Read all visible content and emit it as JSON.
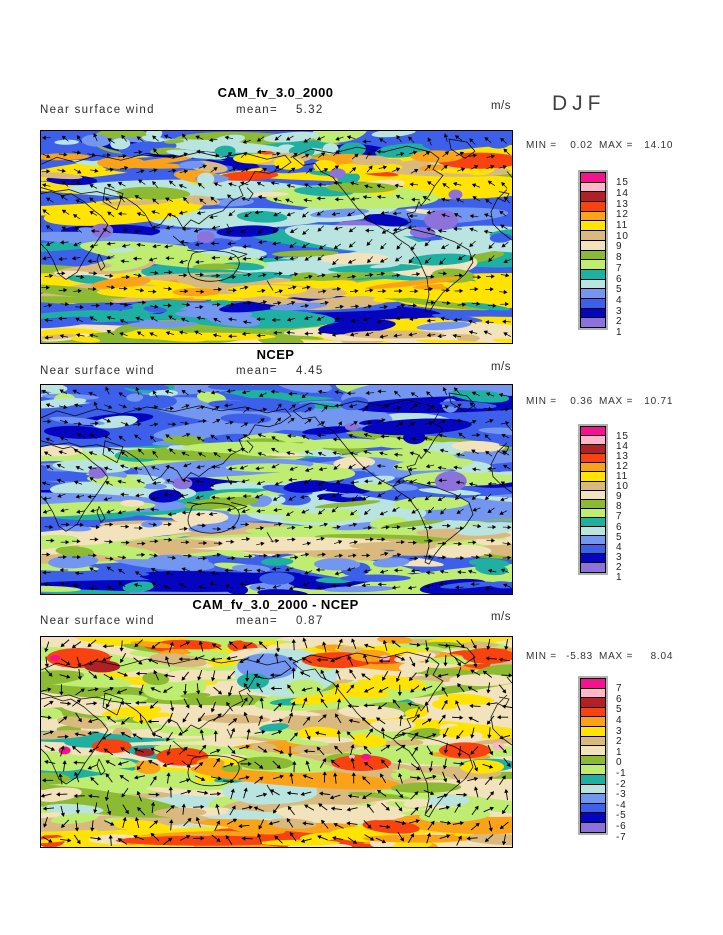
{
  "figure": {
    "season_label": "DJF"
  },
  "palette": {
    "colors": [
      "#F5128E",
      "#FFB6C6",
      "#B02025",
      "#F84310",
      "#FAA319",
      "#FFE303",
      "#D9B97D",
      "#F3E3BC",
      "#8CBB33",
      "#BFED72",
      "#1FB0A2",
      "#B9E4E0",
      "#7397F0",
      "#3C60EA",
      "#0505BF",
      "#8C72DA"
    ],
    "colorbar_border": "#b0b0b0",
    "map_outline": "#000000"
  },
  "chart_data": [
    {
      "type": "heatmap",
      "title": "CAM_fv_3.0_2000",
      "subtitle_left": "Near surface wind",
      "mean_label": "mean=",
      "mean_value": "5.32",
      "units": "m/s",
      "stats": {
        "min_label": "MIN =",
        "min_value": "0.02",
        "max_label": "MAX =",
        "max_value": "14.10"
      },
      "colorbar": {
        "ticks": [
          "15",
          "14",
          "13",
          "12",
          "11",
          "10",
          "9",
          "8",
          "7",
          "6",
          "5",
          "4",
          "3",
          "2",
          "1"
        ]
      }
    },
    {
      "type": "heatmap",
      "title": "NCEP",
      "subtitle_left": "Near surface wind",
      "mean_label": "mean=",
      "mean_value": "4.45",
      "units": "m/s",
      "stats": {
        "min_label": "MIN =",
        "min_value": "0.36",
        "max_label": "MAX =",
        "max_value": "10.71"
      },
      "colorbar": {
        "ticks": [
          "15",
          "14",
          "13",
          "12",
          "11",
          "10",
          "9",
          "8",
          "7",
          "6",
          "5",
          "4",
          "3",
          "2",
          "1"
        ]
      }
    },
    {
      "type": "heatmap",
      "title": "CAM_fv_3.0_2000 - NCEP",
      "subtitle_left": "Near surface wind",
      "mean_label": "mean=",
      "mean_value": "0.87",
      "units": "m/s",
      "stats": {
        "min_label": "MIN =",
        "min_value": "-5.83",
        "max_label": "MAX =",
        "max_value": "8.04"
      },
      "colorbar": {
        "ticks": [
          "7",
          "6",
          "5",
          "4",
          "3",
          "2",
          "1",
          "0",
          "-1",
          "-2",
          "-3",
          "-4",
          "-5",
          "-6",
          "-7"
        ]
      }
    }
  ]
}
